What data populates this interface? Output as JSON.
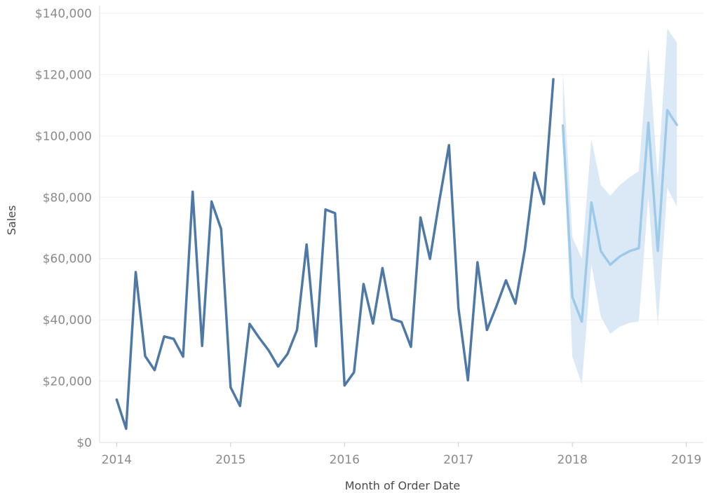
{
  "chart_data": {
    "type": "line",
    "xlabel": "Month of Order Date",
    "ylabel": "Sales",
    "xlim": [
      2013.85,
      2019.15
    ],
    "ylim": [
      0,
      140000
    ],
    "x_ticks": [
      2014,
      2015,
      2016,
      2017,
      2018,
      2019
    ],
    "x_tick_labels": [
      "2014",
      "2015",
      "2016",
      "2017",
      "2018",
      "2019"
    ],
    "y_ticks": [
      0,
      20000,
      40000,
      60000,
      80000,
      100000,
      120000,
      140000
    ],
    "y_tick_labels": [
      "$0",
      "$20,000",
      "$40,000",
      "$60,000",
      "$80,000",
      "$100,000",
      "$120,000",
      "$140,000"
    ],
    "grid": true,
    "colors": {
      "actual": "#4e79a7",
      "forecast": "#9ecae9",
      "band": "#dbe9f6",
      "grid": "#eeeeee",
      "axis": "#dddddd"
    },
    "series": [
      {
        "role": "actual",
        "x": [
          2014.0,
          2014.083,
          2014.167,
          2014.25,
          2014.333,
          2014.417,
          2014.5,
          2014.583,
          2014.667,
          2014.75,
          2014.833,
          2014.917,
          2015.0,
          2015.083,
          2015.167,
          2015.25,
          2015.333,
          2015.417,
          2015.5,
          2015.583,
          2015.667,
          2015.75,
          2015.833,
          2015.917,
          2016.0,
          2016.083,
          2016.167,
          2016.25,
          2016.333,
          2016.417,
          2016.5,
          2016.583,
          2016.667,
          2016.75,
          2016.833,
          2016.917,
          2017.0,
          2017.083,
          2017.167,
          2017.25,
          2017.333,
          2017.417,
          2017.5,
          2017.583,
          2017.667,
          2017.75,
          2017.833
        ],
        "values": [
          14000,
          4500,
          55600,
          28200,
          23600,
          34600,
          33800,
          28000,
          81800,
          31500,
          78600,
          69600,
          18000,
          11900,
          38700,
          34200,
          30100,
          24800,
          28900,
          36700,
          64600,
          31400,
          76000,
          74800,
          18600,
          22900,
          51700,
          38800,
          56900,
          40300,
          39300,
          31200,
          73400,
          59900,
          79000,
          97000,
          43800,
          20300,
          58800,
          36700,
          44400,
          52900,
          45300,
          63000,
          88000,
          77800,
          118500
        ]
      },
      {
        "role": "forecast",
        "x": [
          2017.917,
          2018.0,
          2018.083,
          2018.167,
          2018.25,
          2018.333,
          2018.417,
          2018.5,
          2018.583,
          2018.667,
          2018.75,
          2018.833,
          2018.917
        ],
        "values": [
          103400,
          47500,
          39400,
          78300,
          62400,
          58000,
          60700,
          62400,
          63400,
          104300,
          62500,
          108400,
          103600
        ],
        "lower": [
          103400,
          28000,
          19000,
          58000,
          41000,
          35500,
          37800,
          39000,
          39500,
          80000,
          38000,
          83000,
          77000
        ],
        "upper": [
          121000,
          67000,
          60000,
          99000,
          84000,
          80500,
          84000,
          86500,
          88500,
          129000,
          86000,
          135000,
          130500
        ]
      }
    ]
  }
}
